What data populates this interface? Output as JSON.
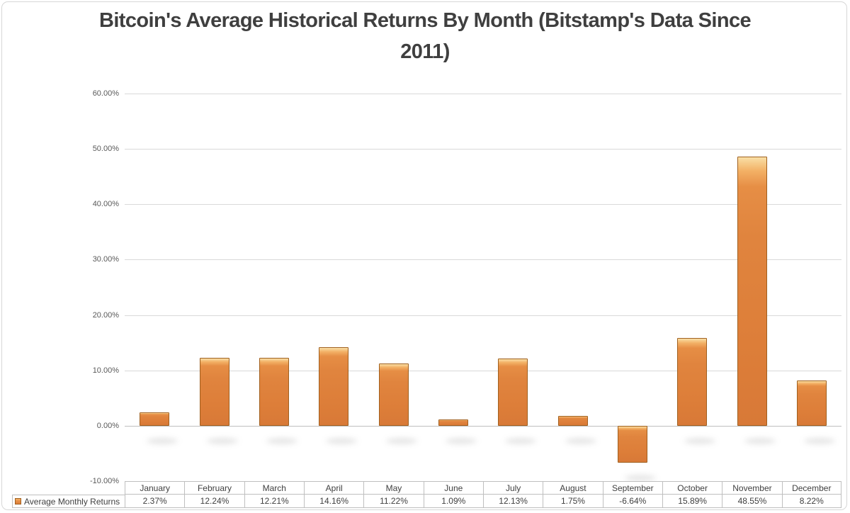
{
  "chart_data": {
    "type": "bar",
    "title": "Bitcoin's Average Historical Returns By Month (Bitstamp's Data Since 2011)",
    "title_lines": [
      "Bitcoin's Average Historical Returns By Month (Bitstamp's Data Since",
      "2011)"
    ],
    "categories": [
      "January",
      "February",
      "March",
      "April",
      "May",
      "June",
      "July",
      "August",
      "September",
      "October",
      "November",
      "December"
    ],
    "series": [
      {
        "name": "Average Monthly Returns",
        "values": [
          2.37,
          12.24,
          12.21,
          14.16,
          11.22,
          1.09,
          12.13,
          1.75,
          -6.64,
          15.89,
          48.55,
          8.22
        ]
      }
    ],
    "value_labels": [
      "2.37%",
      "12.24%",
      "12.21%",
      "14.16%",
      "11.22%",
      "1.09%",
      "12.13%",
      "1.75%",
      "-6.64%",
      "15.89%",
      "48.55%",
      "8.22%"
    ],
    "y_ticks": [
      {
        "value": 60,
        "label": "60.00%"
      },
      {
        "value": 50,
        "label": "50.00%"
      },
      {
        "value": 40,
        "label": "40.00%"
      },
      {
        "value": 30,
        "label": "30.00%"
      },
      {
        "value": 20,
        "label": "20.00%"
      },
      {
        "value": 10,
        "label": "10.00%"
      },
      {
        "value": 0,
        "label": "0.00%"
      },
      {
        "value": -10,
        "label": "-10.00%"
      }
    ],
    "ylim": [
      -10,
      60
    ],
    "xlabel": "",
    "ylabel": "",
    "grid": true,
    "legend_position": "table-left",
    "colors": {
      "bar_fill": "#e0843e",
      "bar_border": "#a0601f",
      "bar_bevel_highlight": "#f3b166",
      "gridline": "#d9d9d9",
      "zero_axis": "#c0c0c0",
      "table_border": "#bfbfbf",
      "text": "#404040",
      "axis_text": "#595959",
      "title_text": "#3f3f3f"
    }
  }
}
